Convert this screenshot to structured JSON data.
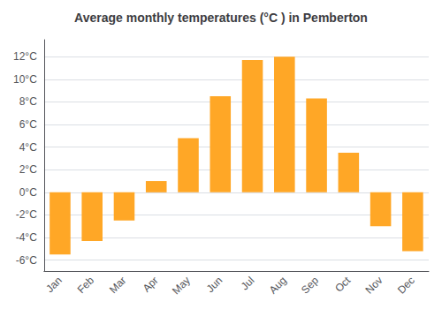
{
  "chart_data": {
    "type": "bar",
    "title": "Average monthly temperatures (°C ) in Pemberton",
    "categories": [
      "Jan",
      "Feb",
      "Mar",
      "Apr",
      "May",
      "Jun",
      "Jul",
      "Aug",
      "Sep",
      "Oct",
      "Nov",
      "Dec"
    ],
    "values": [
      -5.5,
      -4.3,
      -2.5,
      1.0,
      4.8,
      8.5,
      11.7,
      12.0,
      8.3,
      3.5,
      -3.0,
      -5.2
    ],
    "color": "#FFA726",
    "ylim": [
      -7,
      13.5
    ],
    "yticks": [
      {
        "value": -6,
        "label": "-6°C"
      },
      {
        "value": -4,
        "label": "-4°C"
      },
      {
        "value": -2,
        "label": "-2°C"
      },
      {
        "value": 0,
        "label": "0°C"
      },
      {
        "value": 2,
        "label": "2°C"
      },
      {
        "value": 4,
        "label": "4°C"
      },
      {
        "value": 6,
        "label": "6°C"
      },
      {
        "value": 8,
        "label": "8°C"
      },
      {
        "value": 10,
        "label": "10°C"
      },
      {
        "value": 12,
        "label": "12°C"
      }
    ],
    "grid": true
  }
}
